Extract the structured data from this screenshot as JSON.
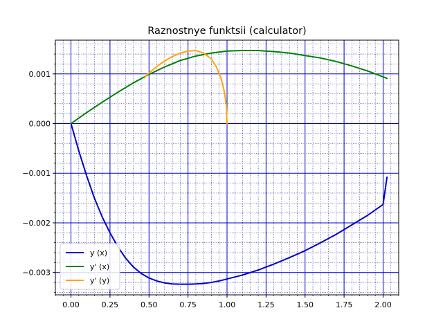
{
  "chart_data": {
    "type": "line",
    "title": "Raznostnye funktsii (calculator)",
    "xlabel": "",
    "ylabel": "",
    "xlim": [
      -0.1,
      2.1
    ],
    "ylim": [
      -0.00345,
      0.00168
    ],
    "x_ticks": [
      0.0,
      0.25,
      0.5,
      0.75,
      1.0,
      1.25,
      1.5,
      1.75,
      2.0
    ],
    "x_tick_labels": [
      "0.00",
      "0.25",
      "0.50",
      "0.75",
      "1.00",
      "1.25",
      "1.50",
      "1.75",
      "2.00"
    ],
    "y_ticks": [
      -0.003,
      -0.002,
      -0.001,
      0.0,
      0.001
    ],
    "y_tick_labels": [
      "−0.003",
      "−0.002",
      "−0.001",
      "0.000",
      "0.001"
    ],
    "x_minor_step": 0.05,
    "y_minor_step": 0.0002,
    "grid": true,
    "grid_major_color": "#0000cc",
    "grid_minor_color": "#1a1aa6",
    "legend_position": "lower-left",
    "series": [
      {
        "name": "y (x)",
        "color": "#0000cc",
        "points": [
          [
            0.0,
            0.0
          ],
          [
            0.05,
            -0.00055
          ],
          [
            0.1,
            -0.00105
          ],
          [
            0.15,
            -0.0015
          ],
          [
            0.2,
            -0.00188
          ],
          [
            0.25,
            -0.0022
          ],
          [
            0.3,
            -0.00248
          ],
          [
            0.35,
            -0.00271
          ],
          [
            0.4,
            -0.00289
          ],
          [
            0.45,
            -0.00302
          ],
          [
            0.5,
            -0.00311
          ],
          [
            0.55,
            -0.00317
          ],
          [
            0.6,
            -0.00321
          ],
          [
            0.65,
            -0.00323
          ],
          [
            0.7,
            -0.003235
          ],
          [
            0.75,
            -0.003235
          ],
          [
            0.8,
            -0.00323
          ],
          [
            0.85,
            -0.00322
          ],
          [
            0.9,
            -0.0032
          ],
          [
            0.95,
            -0.00317
          ],
          [
            1.0,
            -0.00313
          ],
          [
            1.1,
            -0.00305
          ],
          [
            1.2,
            -0.00295
          ],
          [
            1.3,
            -0.00283
          ],
          [
            1.4,
            -0.0027
          ],
          [
            1.5,
            -0.00256
          ],
          [
            1.6,
            -0.0024
          ],
          [
            1.7,
            -0.00223
          ],
          [
            1.8,
            -0.00204
          ],
          [
            1.9,
            -0.00185
          ],
          [
            2.0,
            -0.00163
          ],
          [
            2.025,
            -0.00108
          ]
        ]
      },
      {
        "name": "y' (x)",
        "color": "#008000",
        "points": [
          [
            0.0,
            0.0
          ],
          [
            0.1,
            0.00022
          ],
          [
            0.2,
            0.00043
          ],
          [
            0.3,
            0.00063
          ],
          [
            0.4,
            0.00082
          ],
          [
            0.5,
            0.00099
          ],
          [
            0.6,
            0.00114
          ],
          [
            0.7,
            0.00127
          ],
          [
            0.8,
            0.00136
          ],
          [
            0.9,
            0.00142
          ],
          [
            1.0,
            0.00146
          ],
          [
            1.1,
            0.00147
          ],
          [
            1.2,
            0.00147
          ],
          [
            1.3,
            0.00145
          ],
          [
            1.4,
            0.00142
          ],
          [
            1.5,
            0.00137
          ],
          [
            1.6,
            0.00132
          ],
          [
            1.7,
            0.00125
          ],
          [
            1.8,
            0.00116
          ],
          [
            1.9,
            0.00106
          ],
          [
            2.025,
            0.00091
          ]
        ]
      },
      {
        "name": "y' (y)",
        "color": "#ffa500",
        "points": [
          [
            0.47,
            0.00092
          ],
          [
            0.5,
            0.00102
          ],
          [
            0.55,
            0.00115
          ],
          [
            0.6,
            0.00126
          ],
          [
            0.65,
            0.00135
          ],
          [
            0.7,
            0.00142
          ],
          [
            0.75,
            0.00146
          ],
          [
            0.8,
            0.00147
          ],
          [
            0.85,
            0.00142
          ],
          [
            0.9,
            0.0013
          ],
          [
            0.93,
            0.00115
          ],
          [
            0.96,
            0.00093
          ],
          [
            0.98,
            0.00068
          ],
          [
            0.995,
            0.0004
          ],
          [
            1.0,
            0.0
          ]
        ]
      }
    ]
  }
}
